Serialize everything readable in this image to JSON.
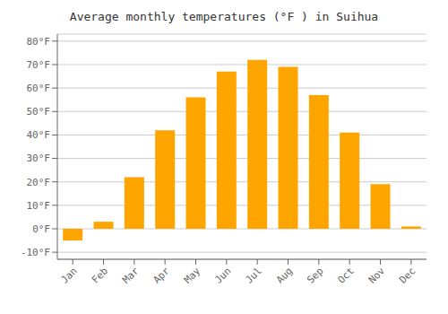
{
  "chart_data": {
    "type": "bar",
    "title": "Average monthly temperatures (°F ) in Suihua",
    "categories": [
      "Jan",
      "Feb",
      "Mar",
      "Apr",
      "May",
      "Jun",
      "Jul",
      "Aug",
      "Sep",
      "Oct",
      "Nov",
      "Dec"
    ],
    "values": [
      -5,
      3,
      22,
      42,
      56,
      67,
      72,
      69,
      57,
      41,
      19,
      1
    ],
    "color": "#FFA500",
    "ylim": [
      -13,
      83
    ],
    "yticks": [
      {
        "value": -10,
        "label": "-10°F"
      },
      {
        "value": 0,
        "label": "0°F"
      },
      {
        "value": 10,
        "label": "10°F"
      },
      {
        "value": 20,
        "label": "20°F"
      },
      {
        "value": 30,
        "label": "30°F"
      },
      {
        "value": 40,
        "label": "40°F"
      },
      {
        "value": 50,
        "label": "50°F"
      },
      {
        "value": 60,
        "label": "60°F"
      },
      {
        "value": 70,
        "label": "70°F"
      },
      {
        "value": 80,
        "label": "80°F"
      }
    ],
    "grid": true
  }
}
